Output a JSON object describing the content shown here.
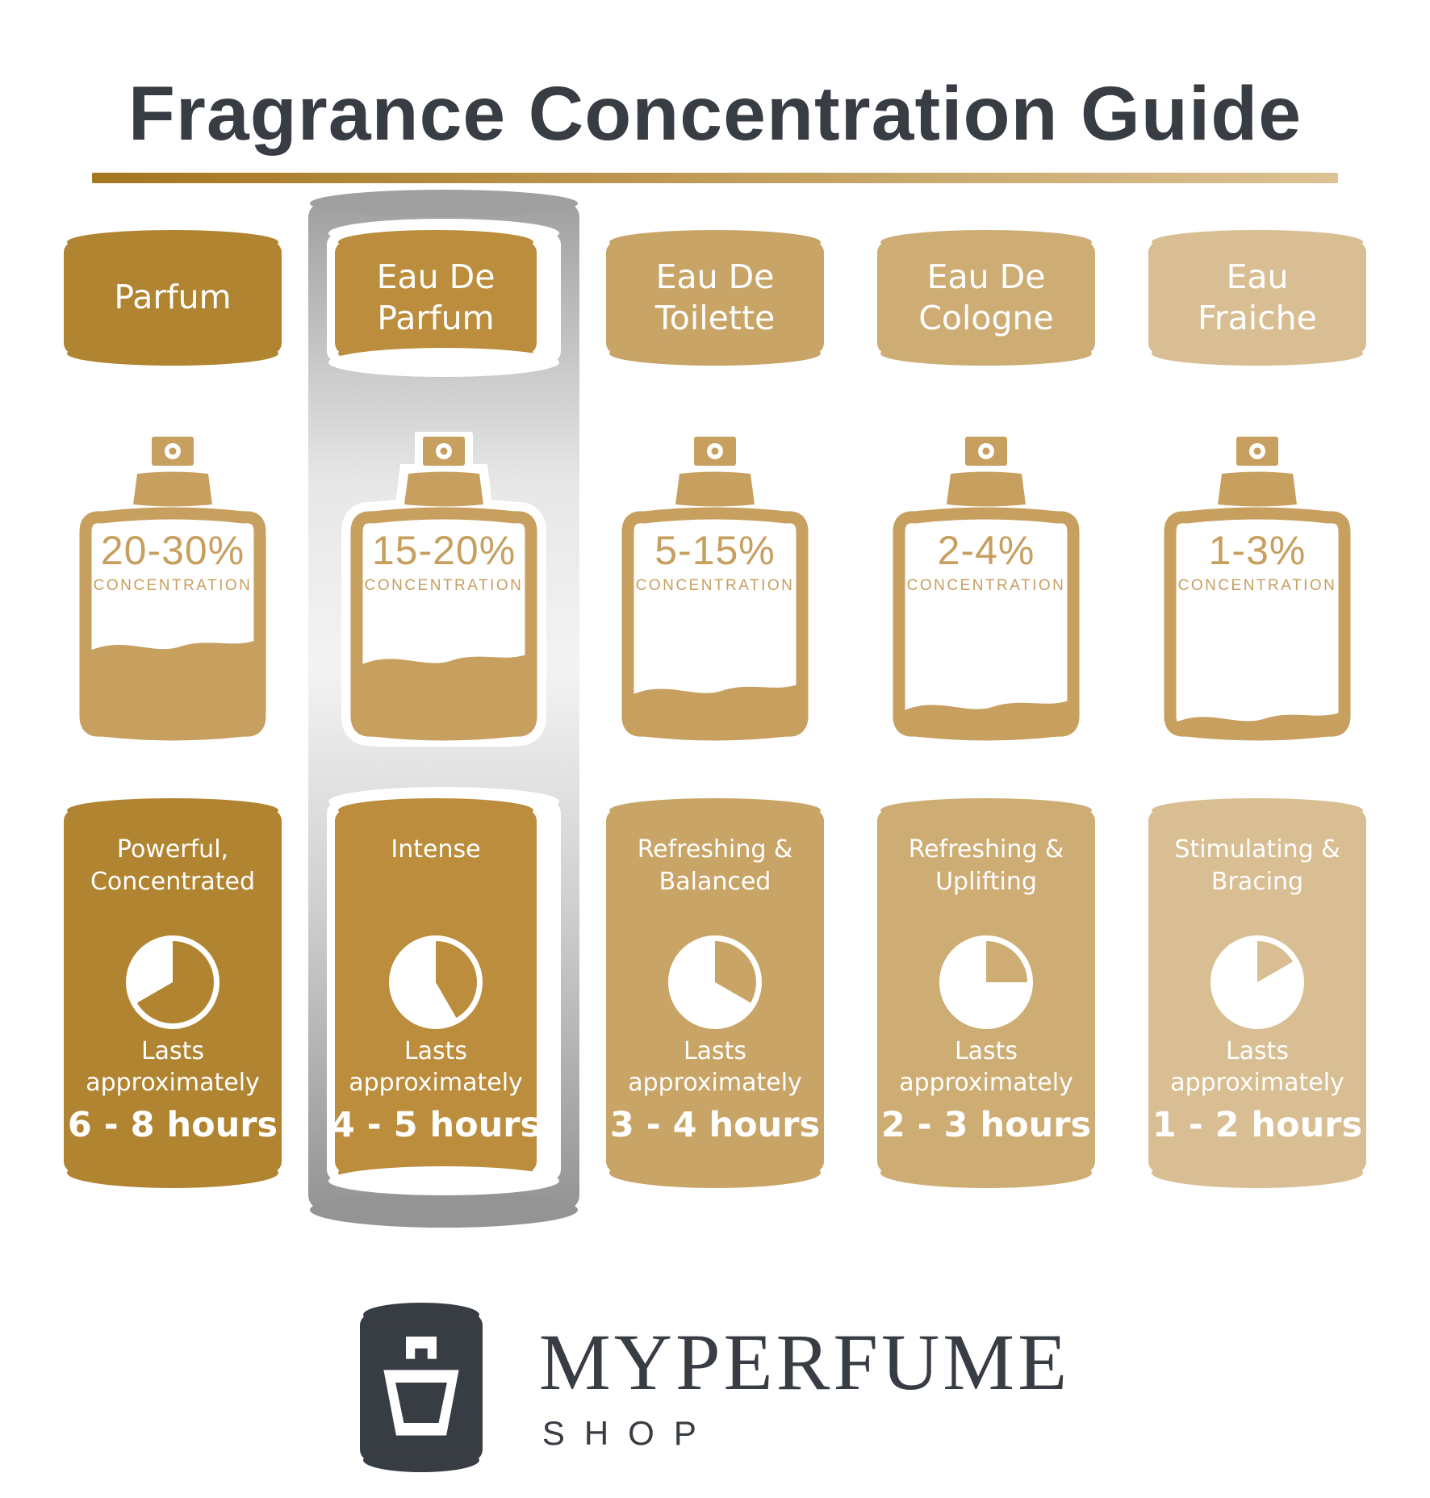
{
  "title": "Fragrance Concentration Guide",
  "highlight_index": 1,
  "logo": {
    "brand": "MYPERFUME",
    "sub": "SHOP"
  },
  "colors": {
    "title": "#383c43",
    "rule_from": "#a3761f",
    "rule_to": "#dcc294",
    "bottle": "#c79f5f",
    "strip_top": "#a0a0a0",
    "strip_mid": "#f3f3f3",
    "strip_bottom": "#949494",
    "logo_badge": "#383c43",
    "column_colors": [
      "#b08430",
      "#bb8d3c",
      "#c9a467",
      "#cead74",
      "#d8be92"
    ]
  },
  "columns": [
    {
      "name": "Parfum",
      "concentration": "20-30%",
      "concentration_label": "CONCENTRATION",
      "fill_percent": 42,
      "character": "Powerful, Concentrated",
      "lasts": "Lasts approximately",
      "duration": "6 - 8 hours",
      "max_hours": 8
    },
    {
      "name": "Eau De\nParfum",
      "concentration": "15-20%",
      "concentration_label": "CONCENTRATION",
      "fill_percent": 35,
      "character": "Intense",
      "lasts": "Lasts approximately",
      "duration": "4 - 5 hours",
      "max_hours": 5
    },
    {
      "name": "Eau De\nToilette",
      "concentration": "5-15%",
      "concentration_label": "CONCENTRATION",
      "fill_percent": 20,
      "character": "Refreshing & Balanced",
      "lasts": "Lasts approximately",
      "duration": "3 - 4 hours",
      "max_hours": 4
    },
    {
      "name": "Eau De\nCologne",
      "concentration": "2-4%",
      "concentration_label": "CONCENTRATION",
      "fill_percent": 12,
      "character": "Refreshing & Uplifting",
      "lasts": "Lasts approximately",
      "duration": "2 - 3 hours",
      "max_hours": 3
    },
    {
      "name": "Eau\nFraiche",
      "concentration": "1-3%",
      "concentration_label": "CONCENTRATION",
      "fill_percent": 6,
      "character": "Stimulating & Bracing",
      "lasts": "Lasts approximately",
      "duration": "1 - 2 hours",
      "max_hours": 2
    }
  ]
}
